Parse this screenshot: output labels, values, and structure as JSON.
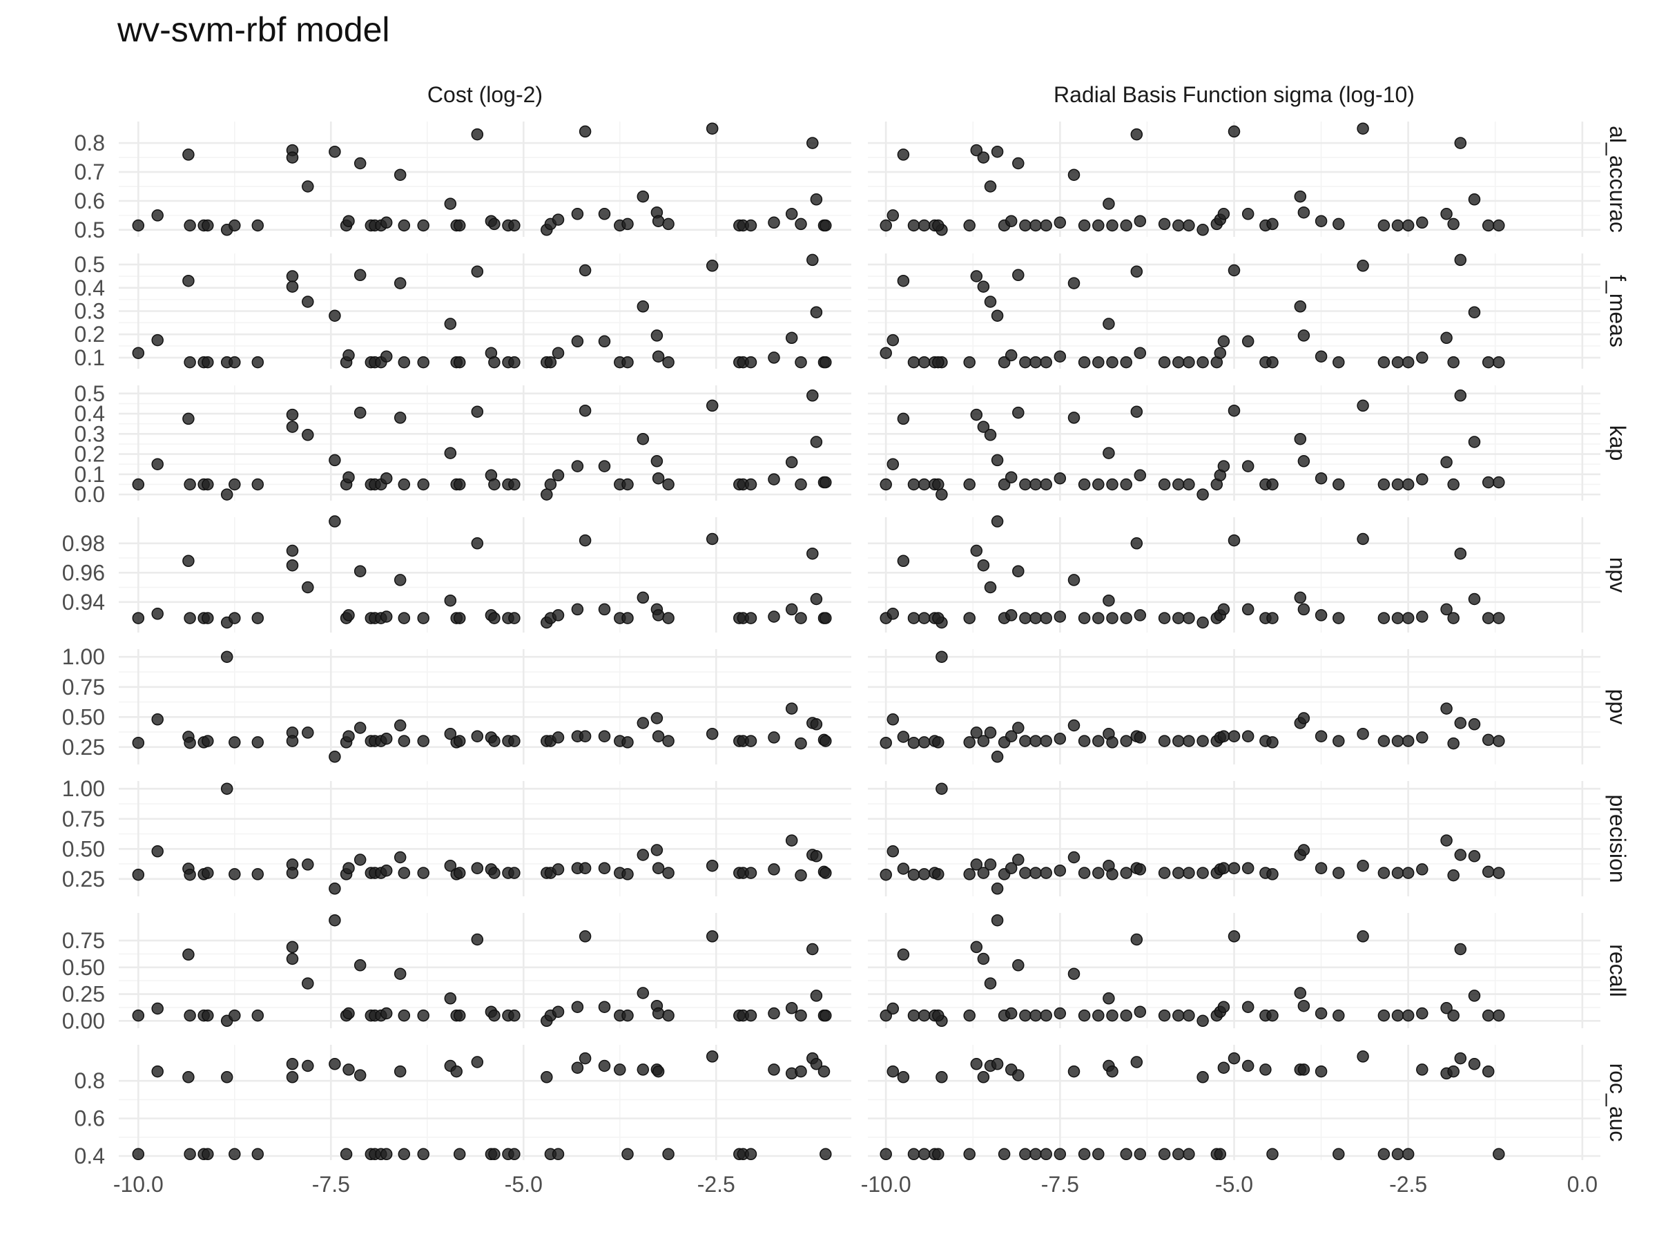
{
  "chart_data": {
    "type": "scatter",
    "title": "wv-svm-rbf model",
    "columns": [
      "Cost (log-2)",
      "Radial Basis Function sigma (log-10)"
    ],
    "rows": [
      "al_accurac",
      "f_meas",
      "kap",
      "npv",
      "ppv",
      "precision",
      "recall",
      "roc_auc"
    ],
    "x_axes": [
      {
        "xlim": [
          -10.2,
          -0.8
        ],
        "ticks": [
          -10,
          -7.5,
          -5,
          -2.5
        ],
        "tick_labels": [
          "-10.0",
          "-7.5",
          "-5.0",
          "-2.5"
        ]
      },
      {
        "xlim": [
          -10.2,
          0.2
        ],
        "ticks": [
          -10,
          -7.5,
          -5,
          -2.5,
          0
        ],
        "tick_labels": [
          "-10.0",
          "-7.5",
          "-5.0",
          "-2.5",
          "0.0"
        ]
      }
    ],
    "y_axes": {
      "al_accurac": {
        "ylim": [
          0.49,
          0.86
        ],
        "ticks": [
          0.5,
          0.6,
          0.7,
          0.8
        ],
        "tick_labels": [
          "0.5",
          "0.6",
          "0.7",
          "0.8"
        ]
      },
      "f_meas": {
        "ylim": [
          0.07,
          0.53
        ],
        "ticks": [
          0.1,
          0.2,
          0.3,
          0.4,
          0.5
        ],
        "tick_labels": [
          "0.1",
          "0.2",
          "0.3",
          "0.4",
          "0.5"
        ]
      },
      "kap": {
        "ylim": [
          -0.01,
          0.52
        ],
        "ticks": [
          0.0,
          0.1,
          0.2,
          0.3,
          0.4,
          0.5
        ],
        "tick_labels": [
          "0.0",
          "0.1",
          "0.2",
          "0.3",
          "0.4",
          "0.5"
        ]
      },
      "npv": {
        "ylim": [
          0.922,
          0.995
        ],
        "ticks": [
          0.94,
          0.96,
          0.98
        ],
        "tick_labels": [
          "0.94",
          "0.96",
          "0.98"
        ]
      },
      "ppv": {
        "ylim": [
          0.14,
          1.03
        ],
        "ticks": [
          0.25,
          0.5,
          0.75,
          1.0
        ],
        "tick_labels": [
          "0.25",
          "0.50",
          "0.75",
          "1.00"
        ]
      },
      "precision": {
        "ylim": [
          0.14,
          1.03
        ],
        "ticks": [
          0.25,
          0.5,
          0.75,
          1.0
        ],
        "tick_labels": [
          "0.25",
          "0.50",
          "0.75",
          "1.00"
        ]
      },
      "recall": {
        "ylim": [
          -0.03,
          0.97
        ],
        "ticks": [
          0.0,
          0.25,
          0.5,
          0.75
        ],
        "tick_labels": [
          "0.00",
          "0.25",
          "0.50",
          "0.75"
        ]
      },
      "roc_auc": {
        "ylim": [
          0.4,
          0.97
        ],
        "ticks": [
          0.4,
          0.6,
          0.8
        ],
        "tick_labels": [
          "0.4",
          "0.6",
          "0.8"
        ]
      }
    },
    "grid": true,
    "legend": "none",
    "point_color": "#222222",
    "points": [
      {
        "cost": -10.0,
        "sigma": -10.0,
        "al_accurac": 0.515,
        "f_meas": 0.12,
        "kap": 0.05,
        "npv": 0.929,
        "ppv": 0.285,
        "precision": 0.285,
        "recall": 0.05,
        "roc_auc": 0.41
      },
      {
        "cost": -9.75,
        "sigma": -9.9,
        "al_accurac": 0.55,
        "f_meas": 0.175,
        "kap": 0.15,
        "npv": 0.932,
        "ppv": 0.48,
        "precision": 0.48,
        "recall": 0.115,
        "roc_auc": 0.85
      },
      {
        "cost": -9.35,
        "sigma": -9.75,
        "al_accurac": 0.76,
        "f_meas": 0.43,
        "kap": 0.375,
        "npv": 0.968,
        "ppv": 0.335,
        "precision": 0.335,
        "recall": 0.62,
        "roc_auc": 0.82
      },
      {
        "cost": -9.33,
        "sigma": -9.6,
        "al_accurac": 0.515,
        "f_meas": 0.08,
        "kap": 0.05,
        "npv": 0.929,
        "ppv": 0.285,
        "precision": 0.285,
        "recall": 0.05,
        "roc_auc": 0.41
      },
      {
        "cost": -9.15,
        "sigma": -9.45,
        "al_accurac": 0.515,
        "f_meas": 0.08,
        "kap": 0.05,
        "npv": 0.929,
        "ppv": 0.29,
        "precision": 0.29,
        "recall": 0.05,
        "roc_auc": 0.41
      },
      {
        "cost": -9.1,
        "sigma": -9.3,
        "al_accurac": 0.515,
        "f_meas": 0.08,
        "kap": 0.05,
        "npv": 0.929,
        "ppv": 0.3,
        "precision": 0.3,
        "recall": 0.05,
        "roc_auc": 0.41
      },
      {
        "cost": -8.85,
        "sigma": -9.2,
        "al_accurac": 0.5,
        "f_meas": 0.08,
        "kap": 0.0,
        "npv": 0.926,
        "ppv": 1.0,
        "precision": 1.0,
        "recall": 0.0,
        "roc_auc": 0.82
      },
      {
        "cost": -8.75,
        "sigma": -9.25,
        "al_accurac": 0.515,
        "f_meas": 0.08,
        "kap": 0.05,
        "npv": 0.929,
        "ppv": 0.29,
        "precision": 0.29,
        "recall": 0.05,
        "roc_auc": 0.41
      },
      {
        "cost": -8.45,
        "sigma": -8.8,
        "al_accurac": 0.515,
        "f_meas": 0.08,
        "kap": 0.05,
        "npv": 0.929,
        "ppv": 0.29,
        "precision": 0.29,
        "recall": 0.05,
        "roc_auc": 0.41
      },
      {
        "cost": -8.0,
        "sigma": -8.7,
        "al_accurac": 0.775,
        "f_meas": 0.45,
        "kap": 0.395,
        "npv": 0.975,
        "ppv": 0.37,
        "precision": 0.37,
        "recall": 0.69,
        "roc_auc": 0.89
      },
      {
        "cost": -8.0,
        "sigma": -8.6,
        "al_accurac": 0.75,
        "f_meas": 0.405,
        "kap": 0.335,
        "npv": 0.965,
        "ppv": 0.3,
        "precision": 0.3,
        "recall": 0.58,
        "roc_auc": 0.82
      },
      {
        "cost": -7.8,
        "sigma": -8.5,
        "al_accurac": 0.65,
        "f_meas": 0.34,
        "kap": 0.295,
        "npv": 0.95,
        "ppv": 0.37,
        "precision": 0.37,
        "recall": 0.35,
        "roc_auc": 0.88
      },
      {
        "cost": -7.45,
        "sigma": -8.4,
        "al_accurac": 0.77,
        "f_meas": 0.28,
        "kap": 0.17,
        "npv": 0.995,
        "ppv": 0.17,
        "precision": 0.17,
        "recall": 0.94,
        "roc_auc": 0.89
      },
      {
        "cost": -7.3,
        "sigma": -8.3,
        "al_accurac": 0.515,
        "f_meas": 0.08,
        "kap": 0.05,
        "npv": 0.929,
        "ppv": 0.29,
        "precision": 0.29,
        "recall": 0.05,
        "roc_auc": 0.41
      },
      {
        "cost": -7.27,
        "sigma": -8.2,
        "al_accurac": 0.53,
        "f_meas": 0.11,
        "kap": 0.085,
        "npv": 0.931,
        "ppv": 0.34,
        "precision": 0.34,
        "recall": 0.07,
        "roc_auc": 0.86
      },
      {
        "cost": -7.12,
        "sigma": -8.1,
        "al_accurac": 0.73,
        "f_meas": 0.455,
        "kap": 0.405,
        "npv": 0.961,
        "ppv": 0.41,
        "precision": 0.41,
        "recall": 0.52,
        "roc_auc": 0.83
      },
      {
        "cost": -6.98,
        "sigma": -8.0,
        "al_accurac": 0.515,
        "f_meas": 0.08,
        "kap": 0.05,
        "npv": 0.929,
        "ppv": 0.3,
        "precision": 0.3,
        "recall": 0.05,
        "roc_auc": 0.41
      },
      {
        "cost": -6.93,
        "sigma": -7.85,
        "al_accurac": 0.515,
        "f_meas": 0.08,
        "kap": 0.05,
        "npv": 0.929,
        "ppv": 0.3,
        "precision": 0.3,
        "recall": 0.05,
        "roc_auc": 0.41
      },
      {
        "cost": -6.85,
        "sigma": -7.7,
        "al_accurac": 0.515,
        "f_meas": 0.08,
        "kap": 0.05,
        "npv": 0.929,
        "ppv": 0.3,
        "precision": 0.3,
        "recall": 0.05,
        "roc_auc": 0.41
      },
      {
        "cost": -6.78,
        "sigma": -7.5,
        "al_accurac": 0.525,
        "f_meas": 0.105,
        "kap": 0.08,
        "npv": 0.93,
        "ppv": 0.32,
        "precision": 0.32,
        "recall": 0.07,
        "roc_auc": 0.41
      },
      {
        "cost": -6.6,
        "sigma": -7.3,
        "al_accurac": 0.69,
        "f_meas": 0.42,
        "kap": 0.38,
        "npv": 0.955,
        "ppv": 0.43,
        "precision": 0.43,
        "recall": 0.44,
        "roc_auc": 0.85
      },
      {
        "cost": -6.55,
        "sigma": -7.15,
        "al_accurac": 0.515,
        "f_meas": 0.08,
        "kap": 0.05,
        "npv": 0.929,
        "ppv": 0.3,
        "precision": 0.3,
        "recall": 0.05,
        "roc_auc": 0.41
      },
      {
        "cost": -6.3,
        "sigma": -6.95,
        "al_accurac": 0.515,
        "f_meas": 0.08,
        "kap": 0.05,
        "npv": 0.929,
        "ppv": 0.3,
        "precision": 0.3,
        "recall": 0.05,
        "roc_auc": 0.41
      },
      {
        "cost": -5.95,
        "sigma": -6.8,
        "al_accurac": 0.59,
        "f_meas": 0.245,
        "kap": 0.205,
        "npv": 0.941,
        "ppv": 0.36,
        "precision": 0.36,
        "recall": 0.21,
        "roc_auc": 0.88
      },
      {
        "cost": -5.87,
        "sigma": -6.75,
        "al_accurac": 0.515,
        "f_meas": 0.08,
        "kap": 0.05,
        "npv": 0.929,
        "ppv": 0.29,
        "precision": 0.29,
        "recall": 0.05,
        "roc_auc": 0.85
      },
      {
        "cost": -5.83,
        "sigma": -6.55,
        "al_accurac": 0.515,
        "f_meas": 0.08,
        "kap": 0.05,
        "npv": 0.929,
        "ppv": 0.3,
        "precision": 0.3,
        "recall": 0.05,
        "roc_auc": 0.41
      },
      {
        "cost": -5.6,
        "sigma": -6.4,
        "al_accurac": 0.83,
        "f_meas": 0.47,
        "kap": 0.41,
        "npv": 0.98,
        "ppv": 0.34,
        "precision": 0.34,
        "recall": 0.76,
        "roc_auc": 0.9
      },
      {
        "cost": -5.42,
        "sigma": -6.35,
        "al_accurac": 0.53,
        "f_meas": 0.12,
        "kap": 0.095,
        "npv": 0.931,
        "ppv": 0.33,
        "precision": 0.33,
        "recall": 0.085,
        "roc_auc": 0.41
      },
      {
        "cost": -5.38,
        "sigma": -6.0,
        "al_accurac": 0.52,
        "f_meas": 0.08,
        "kap": 0.05,
        "npv": 0.929,
        "ppv": 0.3,
        "precision": 0.3,
        "recall": 0.05,
        "roc_auc": 0.41
      },
      {
        "cost": -5.2,
        "sigma": -5.8,
        "al_accurac": 0.515,
        "f_meas": 0.08,
        "kap": 0.05,
        "npv": 0.929,
        "ppv": 0.3,
        "precision": 0.3,
        "recall": 0.05,
        "roc_auc": 0.41
      },
      {
        "cost": -5.12,
        "sigma": -5.65,
        "al_accurac": 0.515,
        "f_meas": 0.08,
        "kap": 0.05,
        "npv": 0.929,
        "ppv": 0.3,
        "precision": 0.3,
        "recall": 0.05,
        "roc_auc": 0.41
      },
      {
        "cost": -4.7,
        "sigma": -5.45,
        "al_accurac": 0.5,
        "f_meas": 0.08,
        "kap": 0.0,
        "npv": 0.926,
        "ppv": 0.3,
        "precision": 0.3,
        "recall": 0.0,
        "roc_auc": 0.82
      },
      {
        "cost": -4.65,
        "sigma": -5.25,
        "al_accurac": 0.52,
        "f_meas": 0.08,
        "kap": 0.05,
        "npv": 0.929,
        "ppv": 0.3,
        "precision": 0.3,
        "recall": 0.05,
        "roc_auc": 0.41
      },
      {
        "cost": -4.55,
        "sigma": -5.2,
        "al_accurac": 0.535,
        "f_meas": 0.12,
        "kap": 0.095,
        "npv": 0.931,
        "ppv": 0.33,
        "precision": 0.33,
        "recall": 0.085,
        "roc_auc": 0.41
      },
      {
        "cost": -4.3,
        "sigma": -5.15,
        "al_accurac": 0.555,
        "f_meas": 0.17,
        "kap": 0.14,
        "npv": 0.935,
        "ppv": 0.34,
        "precision": 0.34,
        "recall": 0.13,
        "roc_auc": 0.87
      },
      {
        "cost": -4.2,
        "sigma": -5.0,
        "al_accurac": 0.84,
        "f_meas": 0.475,
        "kap": 0.415,
        "npv": 0.982,
        "ppv": 0.34,
        "precision": 0.34,
        "recall": 0.79,
        "roc_auc": 0.92
      },
      {
        "cost": -3.95,
        "sigma": -4.8,
        "al_accurac": 0.555,
        "f_meas": 0.17,
        "kap": 0.14,
        "npv": 0.935,
        "ppv": 0.34,
        "precision": 0.34,
        "recall": 0.13,
        "roc_auc": 0.88
      },
      {
        "cost": -3.75,
        "sigma": -4.55,
        "al_accurac": 0.515,
        "f_meas": 0.08,
        "kap": 0.05,
        "npv": 0.929,
        "ppv": 0.3,
        "precision": 0.3,
        "recall": 0.05,
        "roc_auc": 0.86
      },
      {
        "cost": -3.65,
        "sigma": -4.45,
        "al_accurac": 0.52,
        "f_meas": 0.08,
        "kap": 0.05,
        "npv": 0.929,
        "ppv": 0.29,
        "precision": 0.29,
        "recall": 0.05,
        "roc_auc": 0.41
      },
      {
        "cost": -3.45,
        "sigma": -4.05,
        "al_accurac": 0.615,
        "f_meas": 0.32,
        "kap": 0.275,
        "npv": 0.943,
        "ppv": 0.45,
        "precision": 0.45,
        "recall": 0.26,
        "roc_auc": 0.86
      },
      {
        "cost": -3.27,
        "sigma": -4.0,
        "al_accurac": 0.56,
        "f_meas": 0.195,
        "kap": 0.165,
        "npv": 0.935,
        "ppv": 0.49,
        "precision": 0.49,
        "recall": 0.14,
        "roc_auc": 0.86
      },
      {
        "cost": -3.25,
        "sigma": -3.75,
        "al_accurac": 0.53,
        "f_meas": 0.105,
        "kap": 0.08,
        "npv": 0.931,
        "ppv": 0.34,
        "precision": 0.34,
        "recall": 0.07,
        "roc_auc": 0.85
      },
      {
        "cost": -3.12,
        "sigma": -3.5,
        "al_accurac": 0.52,
        "f_meas": 0.08,
        "kap": 0.05,
        "npv": 0.929,
        "ppv": 0.3,
        "precision": 0.3,
        "recall": 0.05,
        "roc_auc": 0.41
      },
      {
        "cost": -2.55,
        "sigma": -3.15,
        "al_accurac": 0.85,
        "f_meas": 0.495,
        "kap": 0.44,
        "npv": 0.983,
        "ppv": 0.36,
        "precision": 0.36,
        "recall": 0.79,
        "roc_auc": 0.93
      },
      {
        "cost": -2.2,
        "sigma": -2.85,
        "al_accurac": 0.515,
        "f_meas": 0.08,
        "kap": 0.05,
        "npv": 0.929,
        "ppv": 0.3,
        "precision": 0.3,
        "recall": 0.05,
        "roc_auc": 0.41
      },
      {
        "cost": -2.15,
        "sigma": -2.65,
        "al_accurac": 0.515,
        "f_meas": 0.08,
        "kap": 0.05,
        "npv": 0.929,
        "ppv": 0.3,
        "precision": 0.3,
        "recall": 0.05,
        "roc_auc": 0.41
      },
      {
        "cost": -2.05,
        "sigma": -2.5,
        "al_accurac": 0.515,
        "f_meas": 0.08,
        "kap": 0.05,
        "npv": 0.929,
        "ppv": 0.3,
        "precision": 0.3,
        "recall": 0.05,
        "roc_auc": 0.41
      },
      {
        "cost": -1.75,
        "sigma": -2.3,
        "al_accurac": 0.525,
        "f_meas": 0.1,
        "kap": 0.075,
        "npv": 0.93,
        "ppv": 0.33,
        "precision": 0.33,
        "recall": 0.07,
        "roc_auc": 0.86
      },
      {
        "cost": -1.52,
        "sigma": -1.95,
        "al_accurac": 0.555,
        "f_meas": 0.185,
        "kap": 0.16,
        "npv": 0.935,
        "ppv": 0.57,
        "precision": 0.57,
        "recall": 0.12,
        "roc_auc": 0.84
      },
      {
        "cost": -1.4,
        "sigma": -1.85,
        "al_accurac": 0.52,
        "f_meas": 0.08,
        "kap": 0.05,
        "npv": 0.929,
        "ppv": 0.28,
        "precision": 0.28,
        "recall": 0.05,
        "roc_auc": 0.85
      },
      {
        "cost": -1.25,
        "sigma": -1.75,
        "al_accurac": 0.8,
        "f_meas": 0.52,
        "kap": 0.49,
        "npv": 0.973,
        "ppv": 0.45,
        "precision": 0.45,
        "recall": 0.67,
        "roc_auc": 0.92
      },
      {
        "cost": -1.2,
        "sigma": -1.55,
        "al_accurac": 0.605,
        "f_meas": 0.295,
        "kap": 0.26,
        "npv": 0.942,
        "ppv": 0.44,
        "precision": 0.44,
        "recall": 0.235,
        "roc_auc": 0.89
      },
      {
        "cost": -1.1,
        "sigma": -1.35,
        "al_accurac": 0.515,
        "f_meas": 0.08,
        "kap": 0.06,
        "npv": 0.929,
        "ppv": 0.31,
        "precision": 0.31,
        "recall": 0.05,
        "roc_auc": 0.85
      },
      {
        "cost": -1.08,
        "sigma": -1.2,
        "al_accurac": 0.515,
        "f_meas": 0.08,
        "kap": 0.06,
        "npv": 0.929,
        "ppv": 0.3,
        "precision": 0.3,
        "recall": 0.05,
        "roc_auc": 0.41
      }
    ]
  }
}
